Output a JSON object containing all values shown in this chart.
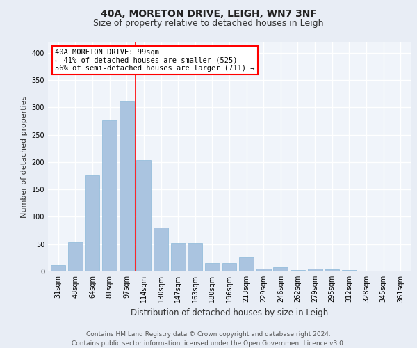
{
  "title1": "40A, MORETON DRIVE, LEIGH, WN7 3NF",
  "title2": "Size of property relative to detached houses in Leigh",
  "xlabel": "Distribution of detached houses by size in Leigh",
  "ylabel": "Number of detached properties",
  "footer": "Contains HM Land Registry data © Crown copyright and database right 2024.\nContains public sector information licensed under the Open Government Licence v3.0.",
  "categories": [
    "31sqm",
    "48sqm",
    "64sqm",
    "81sqm",
    "97sqm",
    "114sqm",
    "130sqm",
    "147sqm",
    "163sqm",
    "180sqm",
    "196sqm",
    "213sqm",
    "229sqm",
    "246sqm",
    "262sqm",
    "279sqm",
    "295sqm",
    "312sqm",
    "328sqm",
    "345sqm",
    "361sqm"
  ],
  "values": [
    12,
    53,
    175,
    276,
    312,
    204,
    80,
    52,
    52,
    15,
    15,
    27,
    5,
    8,
    3,
    5,
    4,
    2,
    1,
    1,
    1
  ],
  "bar_color": "#aac4e0",
  "bar_edgecolor": "#8ab8d8",
  "vline_x": 4.5,
  "vline_color": "red",
  "annotation_text": "40A MORETON DRIVE: 99sqm\n← 41% of detached houses are smaller (525)\n56% of semi-detached houses are larger (711) →",
  "annotation_box_color": "white",
  "annotation_box_edgecolor": "red",
  "ylim": [
    0,
    420
  ],
  "yticks": [
    0,
    50,
    100,
    150,
    200,
    250,
    300,
    350,
    400
  ],
  "bg_color": "#e8edf5",
  "plot_bg_color": "#f0f4fa",
  "grid_color": "white",
  "title1_fontsize": 10,
  "title2_fontsize": 9,
  "xlabel_fontsize": 8.5,
  "ylabel_fontsize": 8,
  "tick_fontsize": 7,
  "footer_fontsize": 6.5
}
